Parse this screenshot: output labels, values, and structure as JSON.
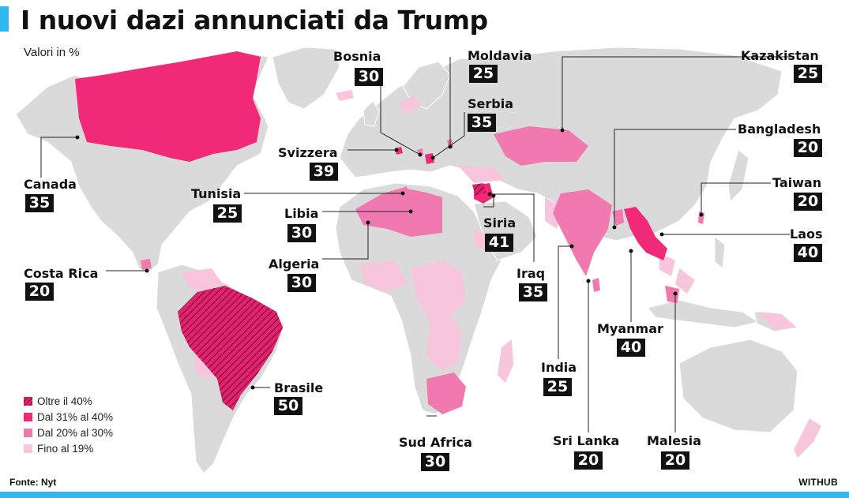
{
  "header": {
    "title": "I nuovi dazi annunciati da Trump",
    "subtitle": "Valori in %"
  },
  "colors": {
    "land": "#dadada",
    "over_40": "#e5206e",
    "range_31_40": "#f02a78",
    "range_20_30": "#f07ab0",
    "up_to_19": "#f7c6dc",
    "accent": "#2fb8ee"
  },
  "legend": [
    {
      "label": "Oltre il 40%",
      "color": "#e5206e",
      "pattern": "hatched"
    },
    {
      "label": "Dal 31% al 40%",
      "color": "#f02a78"
    },
    {
      "label": "Dal 20% al 30%",
      "color": "#f07ab0"
    },
    {
      "label": "Fino al 19%",
      "color": "#f7c6dc"
    }
  ],
  "countries": [
    {
      "name": "Bosnia",
      "value": "30"
    },
    {
      "name": "Moldavia",
      "value": "25"
    },
    {
      "name": "Kazakistan",
      "value": "25"
    },
    {
      "name": "Serbia",
      "value": "35"
    },
    {
      "name": "Bangladesh",
      "value": "20"
    },
    {
      "name": "Svizzera",
      "value": "39"
    },
    {
      "name": "Canada",
      "value": "35"
    },
    {
      "name": "Taiwan",
      "value": "20"
    },
    {
      "name": "Tunisia",
      "value": "25"
    },
    {
      "name": "Libia",
      "value": "30"
    },
    {
      "name": "Siria",
      "value": "41"
    },
    {
      "name": "Laos",
      "value": "40"
    },
    {
      "name": "Algeria",
      "value": "30"
    },
    {
      "name": "Costa Rica",
      "value": "20"
    },
    {
      "name": "Iraq",
      "value": "35"
    },
    {
      "name": "Myanmar",
      "value": "40"
    },
    {
      "name": "India",
      "value": "25"
    },
    {
      "name": "Brasile",
      "value": "50"
    },
    {
      "name": "Sud Africa",
      "value": "30"
    },
    {
      "name": "Sri Lanka",
      "value": "20"
    },
    {
      "name": "Malesia",
      "value": "20"
    }
  ],
  "footer": {
    "source": "Fonte: Nyt",
    "brand": "WITHUB"
  }
}
